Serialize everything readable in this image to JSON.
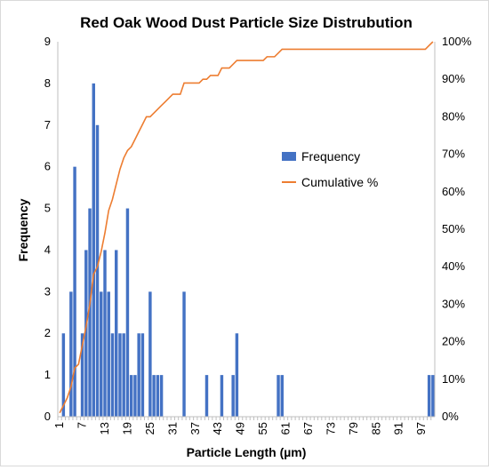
{
  "chart_data": {
    "type": "bar",
    "title": "Red Oak Wood Dust Particle Size Distrubution",
    "xlabel": "Particle Length (µm)",
    "ylabel": "Frequency",
    "y2label": "",
    "ylim": [
      0,
      9
    ],
    "y2lim": [
      0,
      100
    ],
    "y_ticks": [
      "0",
      "1",
      "2",
      "3",
      "4",
      "5",
      "6",
      "7",
      "8",
      "9"
    ],
    "y2_ticks": [
      "0%",
      "10%",
      "20%",
      "30%",
      "40%",
      "50%",
      "60%",
      "70%",
      "80%",
      "90%",
      "100%"
    ],
    "x_tick_labels": [
      "1",
      "7",
      "13",
      "19",
      "25",
      "31",
      "37",
      "43",
      "49",
      "55",
      "61",
      "67",
      "73",
      "79",
      "85",
      "91",
      "97"
    ],
    "legend_position": "right",
    "grid": false,
    "colors": {
      "bar": "#4472C4",
      "line": "#ED7D31"
    },
    "categories": [
      1,
      2,
      3,
      4,
      5,
      6,
      7,
      8,
      9,
      10,
      11,
      12,
      13,
      14,
      15,
      16,
      17,
      18,
      19,
      20,
      21,
      22,
      23,
      24,
      25,
      26,
      27,
      28,
      29,
      30,
      31,
      32,
      33,
      34,
      35,
      36,
      37,
      38,
      39,
      40,
      41,
      42,
      43,
      44,
      45,
      46,
      47,
      48,
      49,
      50,
      51,
      52,
      53,
      54,
      55,
      56,
      57,
      58,
      59,
      60,
      61,
      62,
      63,
      64,
      65,
      66,
      67,
      68,
      69,
      70,
      71,
      72,
      73,
      74,
      75,
      76,
      77,
      78,
      79,
      80,
      81,
      82,
      83,
      84,
      85,
      86,
      87,
      88,
      89,
      90,
      91,
      92,
      93,
      94,
      95,
      96,
      97,
      98,
      99,
      100
    ],
    "series": [
      {
        "name": "Frequency",
        "type": "bar",
        "values": [
          0,
          2,
          0,
          3,
          6,
          0,
          2,
          4,
          5,
          8,
          7,
          3,
          4,
          3,
          2,
          4,
          2,
          2,
          5,
          1,
          1,
          2,
          2,
          0,
          3,
          1,
          1,
          1,
          0,
          0,
          0,
          0,
          0,
          3,
          0,
          0,
          0,
          0,
          0,
          1,
          0,
          0,
          0,
          1,
          0,
          0,
          1,
          2,
          0,
          0,
          0,
          0,
          0,
          0,
          0,
          0,
          0,
          0,
          1,
          1,
          0,
          0,
          0,
          0,
          0,
          0,
          0,
          0,
          0,
          0,
          0,
          0,
          0,
          0,
          0,
          0,
          0,
          0,
          0,
          0,
          0,
          0,
          0,
          0,
          0,
          0,
          0,
          0,
          0,
          0,
          0,
          0,
          0,
          0,
          0,
          0,
          0,
          0,
          1,
          1
        ]
      },
      {
        "name": "Cumulative %",
        "type": "line",
        "axis": "secondary",
        "values": [
          1,
          3,
          5,
          8,
          13,
          14,
          19,
          24,
          30,
          38,
          40,
          44,
          49,
          55,
          58,
          62,
          66,
          69,
          71,
          72,
          74,
          76,
          78,
          80,
          80,
          81,
          82,
          83,
          84,
          85,
          86,
          86,
          86,
          89,
          89,
          89,
          89,
          89,
          90,
          90,
          91,
          91,
          91,
          93,
          93,
          93,
          94,
          95,
          95,
          95,
          95,
          95,
          95,
          95,
          95,
          96,
          96,
          96,
          97,
          98,
          98,
          98,
          98,
          98,
          98,
          98,
          98,
          98,
          98,
          98,
          98,
          98,
          98,
          98,
          98,
          98,
          98,
          98,
          98,
          98,
          98,
          98,
          98,
          98,
          98,
          98,
          98,
          98,
          98,
          98,
          98,
          98,
          98,
          98,
          98,
          98,
          98,
          98,
          99,
          100
        ]
      }
    ]
  }
}
